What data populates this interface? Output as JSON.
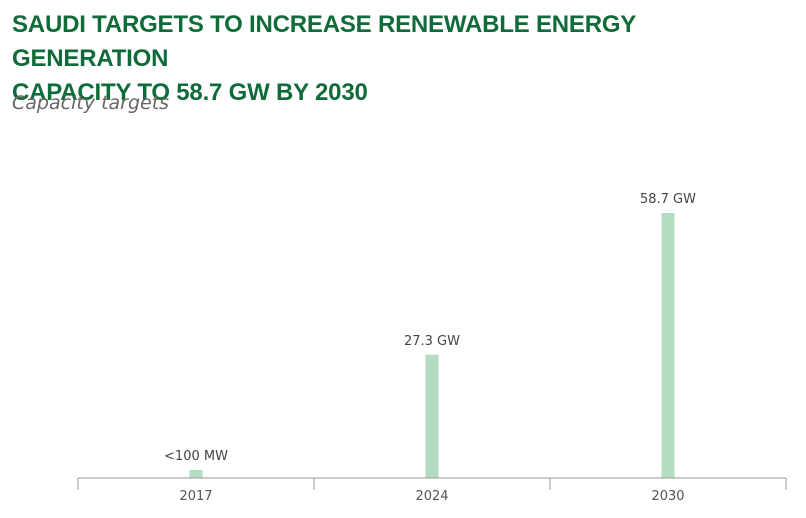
{
  "header": {
    "title_line1": "SAUDI TARGETS TO INCREASE RENEWABLE ENERGY GENERATION",
    "title_line2": "CAPACITY TO 58.7 GW BY 2030",
    "subtitle": "Capacity targets"
  },
  "colors": {
    "title": "#0f6b3a",
    "bar": "#b3dcc0"
  },
  "chart_data": {
    "type": "bar",
    "title": "SAUDI TARGETS TO INCREASE RENEWABLE ENERGY GENERATION CAPACITY TO 58.7 GW BY 2030",
    "subtitle": "Capacity targets",
    "categories": [
      "2017",
      "2024",
      "2030"
    ],
    "values": [
      0.1,
      27.3,
      58.7
    ],
    "unit": "GW",
    "data_labels": [
      "<100 MW",
      "27.3 GW",
      "58.7 GW"
    ],
    "xlabel": "",
    "ylabel": "",
    "ylim": [
      0,
      58.7
    ],
    "grid": false,
    "legend": "none"
  }
}
